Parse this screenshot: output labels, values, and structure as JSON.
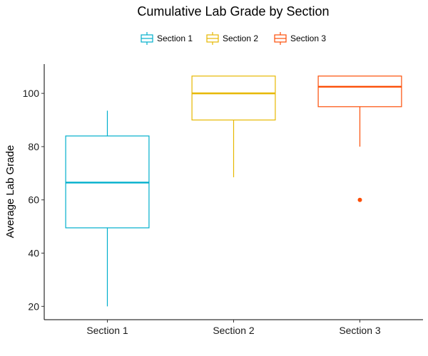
{
  "chart_data": {
    "type": "boxplot",
    "title": "Cumulative Lab Grade by Section",
    "xlabel": "",
    "ylabel": "Average Lab Grade",
    "ylim": [
      15,
      111
    ],
    "yticks": [
      20,
      40,
      60,
      80,
      100
    ],
    "grid": false,
    "legend_position": "top",
    "categories": [
      "Section 1",
      "Section 2",
      "Section 3"
    ],
    "series": [
      {
        "name": "Section 1",
        "color": "#00AFCC",
        "min": 20,
        "q1": 49.5,
        "median": 66.5,
        "q3": 84,
        "max": 93.5,
        "outliers": []
      },
      {
        "name": "Section 2",
        "color": "#E7B800",
        "min": 68.5,
        "q1": 90,
        "median": 100,
        "q3": 106.5,
        "max": 106.5,
        "outliers": []
      },
      {
        "name": "Section 3",
        "color": "#FC4E07",
        "min": 80,
        "q1": 95,
        "median": 102.5,
        "q3": 106.5,
        "max": 106.5,
        "outliers": [
          60
        ]
      }
    ]
  }
}
